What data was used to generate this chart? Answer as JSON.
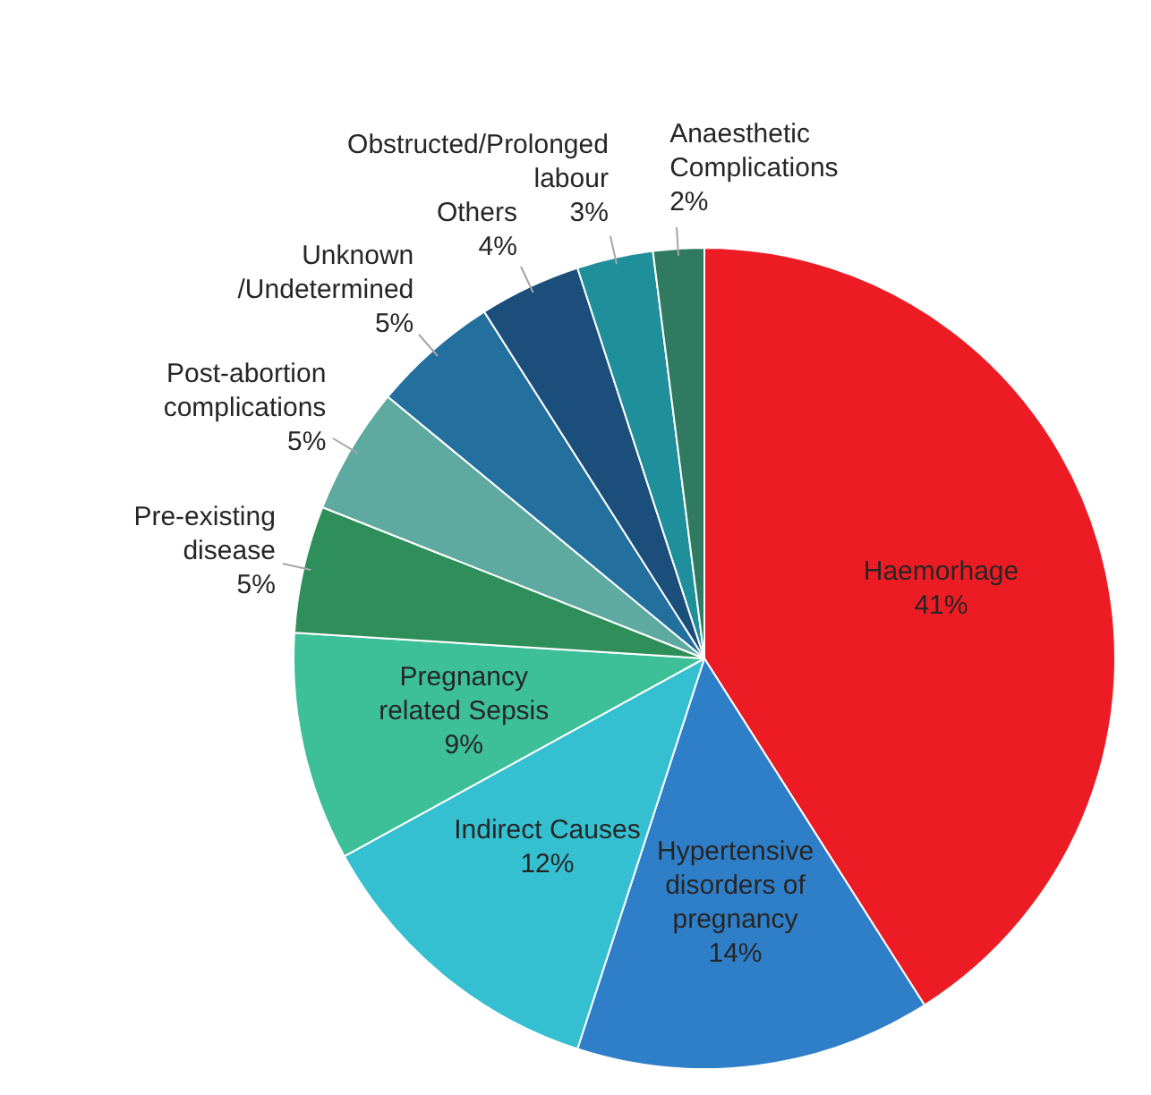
{
  "chart_data": {
    "type": "pie",
    "categories": [
      "Haemorhage",
      "Hypertensive disorders of pregnancy",
      "Indirect Causes",
      "Pregnancy related Sepsis",
      "Pre-existing disease",
      "Post-abortion complications",
      "Unknown /Undetermined",
      "Others",
      "Obstructed/Prolonged labour",
      "Anaesthetic Complications"
    ],
    "values": [
      41,
      14,
      12,
      9,
      5,
      5,
      5,
      4,
      3,
      2
    ],
    "value_labels": [
      "41%",
      "14%",
      "12%",
      "9%",
      "5%",
      "5%",
      "5%",
      "4%",
      "3%",
      "2%"
    ],
    "colors": [
      "#ed1c24",
      "#2f7fc8",
      "#35c0d2",
      "#3dbf98",
      "#2f8f5a",
      "#5ea9a0",
      "#23709e",
      "#1c4e7c",
      "#1f8f9c",
      "#2f7a60"
    ],
    "legend": false
  }
}
